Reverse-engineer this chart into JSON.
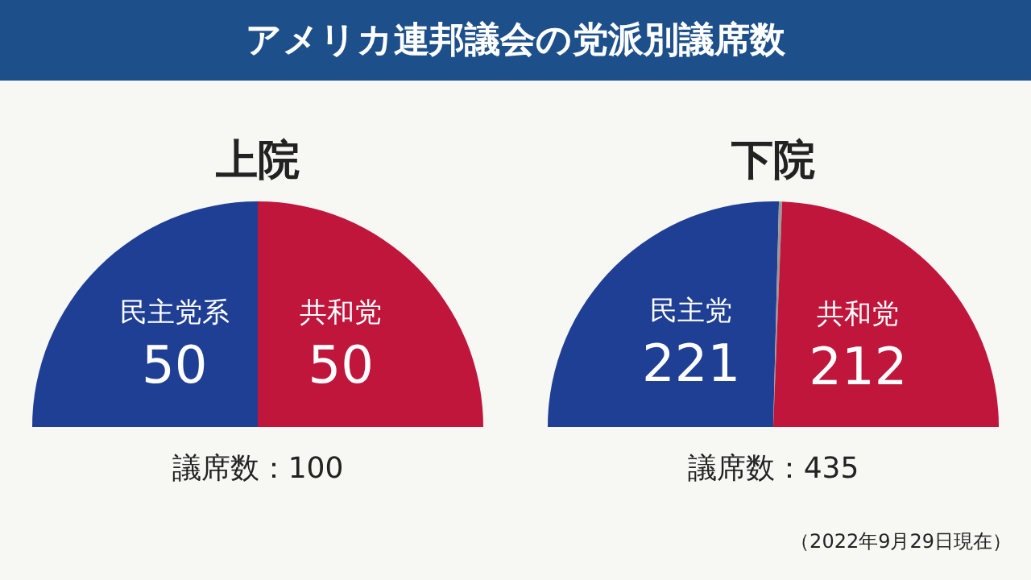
{
  "chart_data": [
    {
      "type": "pie",
      "title": "アメリカ連邦議会の党派別議席数",
      "subtitle": "上院",
      "categories": [
        "民主党系",
        "共和党"
      ],
      "values": [
        50,
        50
      ],
      "colors": [
        "#1f3f94",
        "#c0163c"
      ],
      "data_labels": true,
      "annotations": [
        "議席数：100"
      ]
    },
    {
      "type": "pie",
      "subtitle": "下院",
      "categories": [
        "民主党",
        null,
        "共和党"
      ],
      "values": [
        221,
        2,
        212
      ],
      "colors": [
        "#1f3f94",
        "#9a9a9a",
        "#c0163c"
      ],
      "value_labels": [
        "221",
        null,
        "212"
      ],
      "annotations": [
        "議席数：435",
        "（2022年9月29日現在）"
      ]
    }
  ]
}
